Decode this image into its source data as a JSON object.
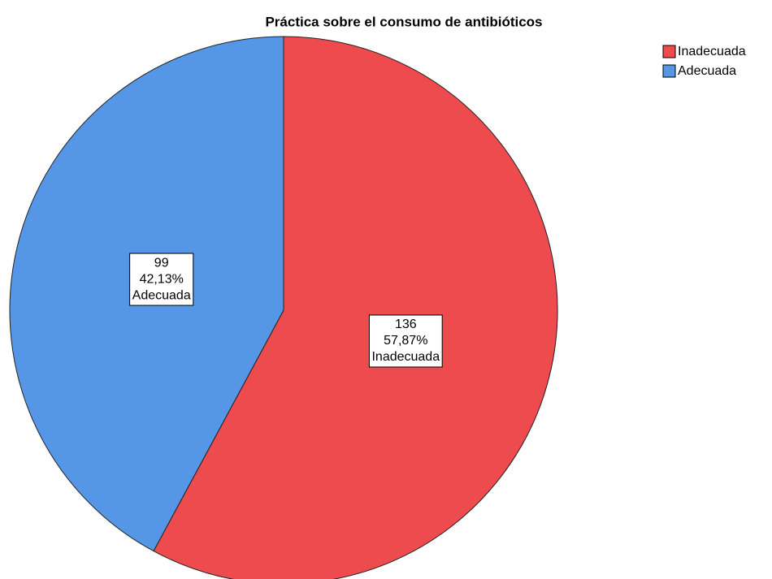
{
  "chart_data": {
    "type": "pie",
    "title": "Práctica sobre el consumo de antibióticos",
    "categories": [
      "Inadecuada",
      "Adecuada"
    ],
    "values": [
      136,
      99
    ],
    "percent_labels": [
      "57,87%",
      "42,13%"
    ],
    "colors": [
      "#ee4b4e",
      "#5597e6"
    ],
    "legend": "top-right"
  }
}
